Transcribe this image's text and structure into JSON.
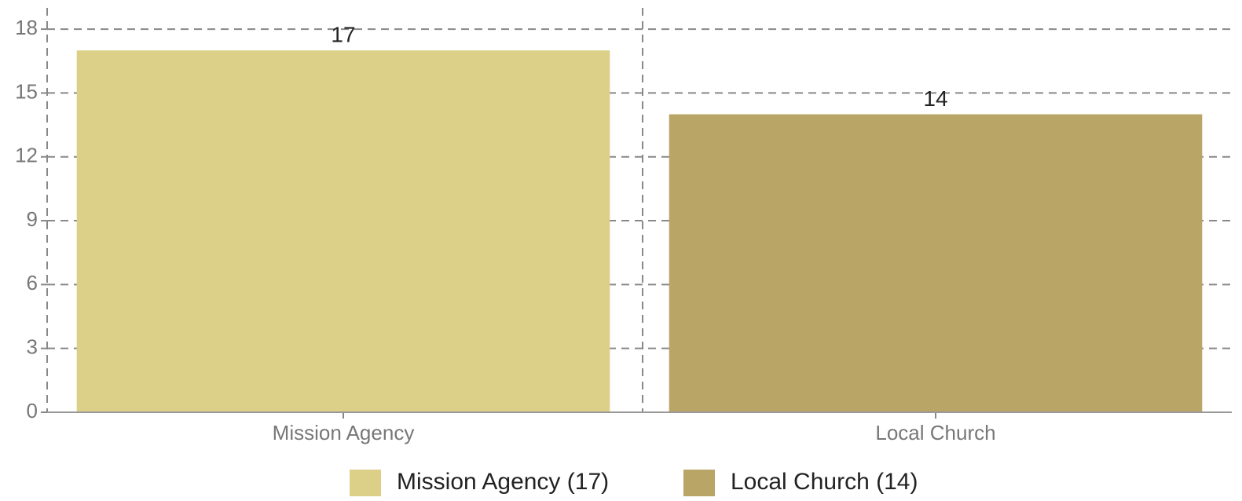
{
  "chart_data": {
    "type": "bar",
    "categories": [
      "Mission Agency",
      "Local Church"
    ],
    "values": [
      17,
      14
    ],
    "colors": [
      "#dccf88",
      "#b9a566"
    ],
    "legend": [
      "Mission Agency (17)",
      "Local Church (14)"
    ],
    "ylim": [
      0,
      19
    ],
    "yticks": [
      0,
      3,
      6,
      9,
      12,
      15,
      18
    ],
    "grid": true
  }
}
